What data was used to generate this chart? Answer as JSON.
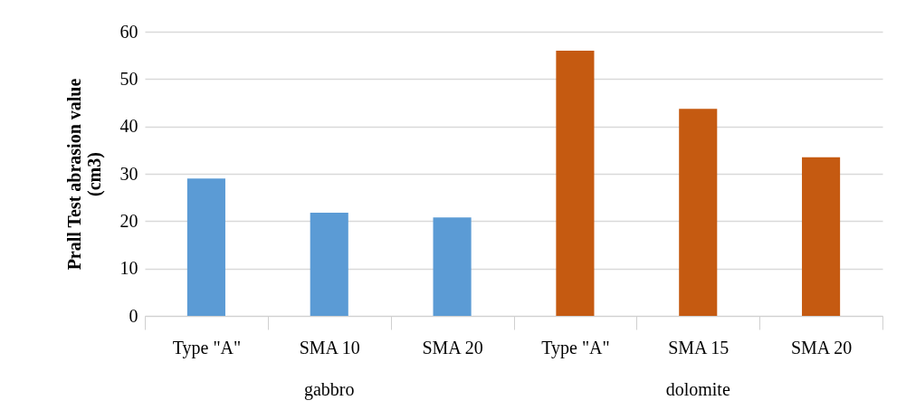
{
  "chart_data": {
    "type": "bar",
    "ylabel": "Prall Test abrasion value (cm3)",
    "categories": [
      "Type \"A\"",
      "SMA 10",
      "SMA 20",
      "Type \"A\"",
      "SMA 15",
      "SMA 20"
    ],
    "series": [
      {
        "color": "#5b9bd5",
        "values": [
          29,
          21.8,
          20.8,
          null,
          null,
          null
        ]
      },
      {
        "color": "#c55a11",
        "values": [
          null,
          null,
          null,
          56,
          43.7,
          33.5
        ]
      }
    ],
    "annotations": [
      "gabbro",
      "dolomite"
    ],
    "ylim": [
      0,
      60
    ],
    "yticks": [
      0,
      10,
      20,
      30,
      40,
      50,
      60
    ],
    "grid": "y"
  }
}
